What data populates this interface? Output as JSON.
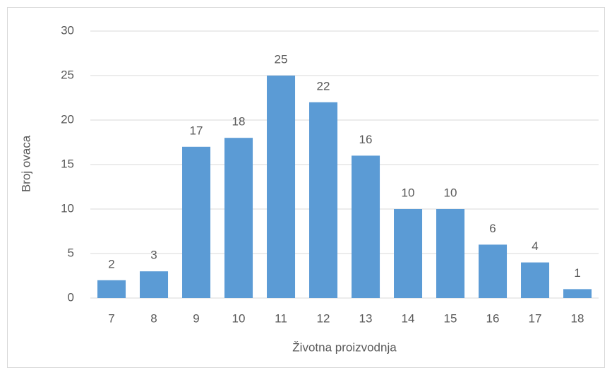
{
  "chart_data": {
    "type": "bar",
    "categories": [
      "7",
      "8",
      "9",
      "10",
      "11",
      "12",
      "13",
      "14",
      "15",
      "16",
      "17",
      "18"
    ],
    "values": [
      2,
      3,
      17,
      18,
      25,
      22,
      16,
      10,
      10,
      6,
      4,
      1
    ],
    "color": "#5b9bd5",
    "x_label": "Životna proizvodnja",
    "y_label": "Broj ovaca",
    "ylim": [
      0,
      30
    ],
    "yticks": [
      0,
      5,
      10,
      15,
      20,
      25,
      30
    ],
    "grid": true
  }
}
